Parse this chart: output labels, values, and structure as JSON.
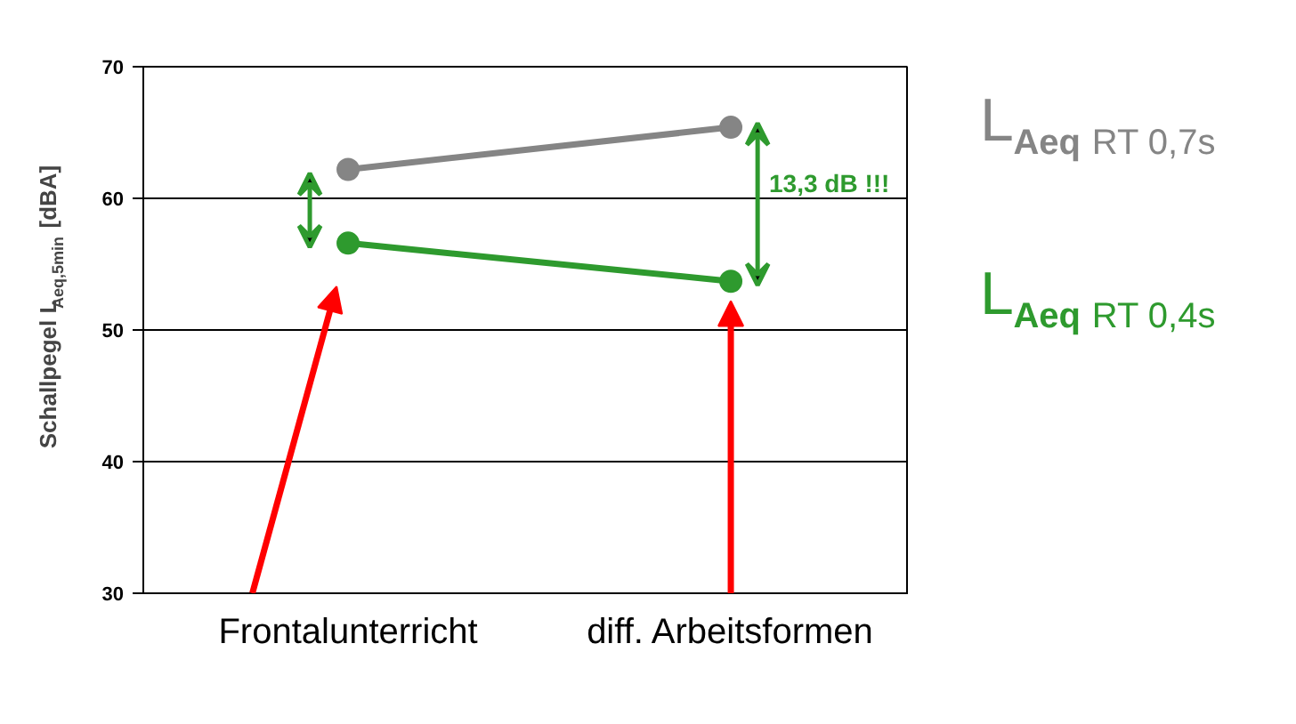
{
  "chart_data": {
    "type": "line",
    "ylabel": "Schallpegel L$_{Aeq,5min}$ [dBA]",
    "categories": [
      "Frontalunterricht",
      "diff. Arbeitsformen"
    ],
    "series": [
      {
        "name": "L$_{Aeq}$ RT 0,7s",
        "color": "#858585",
        "values": [
          62.2,
          65.4
        ]
      },
      {
        "name": "L$_{Aeq}$ RT 0,4s",
        "color": "#2e9a2e",
        "values": [
          56.6,
          53.7
        ]
      }
    ],
    "ylim": [
      30,
      70
    ],
    "yticks": [
      30,
      40,
      50,
      60,
      70
    ],
    "grid": "y",
    "marker": "circle",
    "annotations": [
      "13,3 dB !!!"
    ]
  }
}
